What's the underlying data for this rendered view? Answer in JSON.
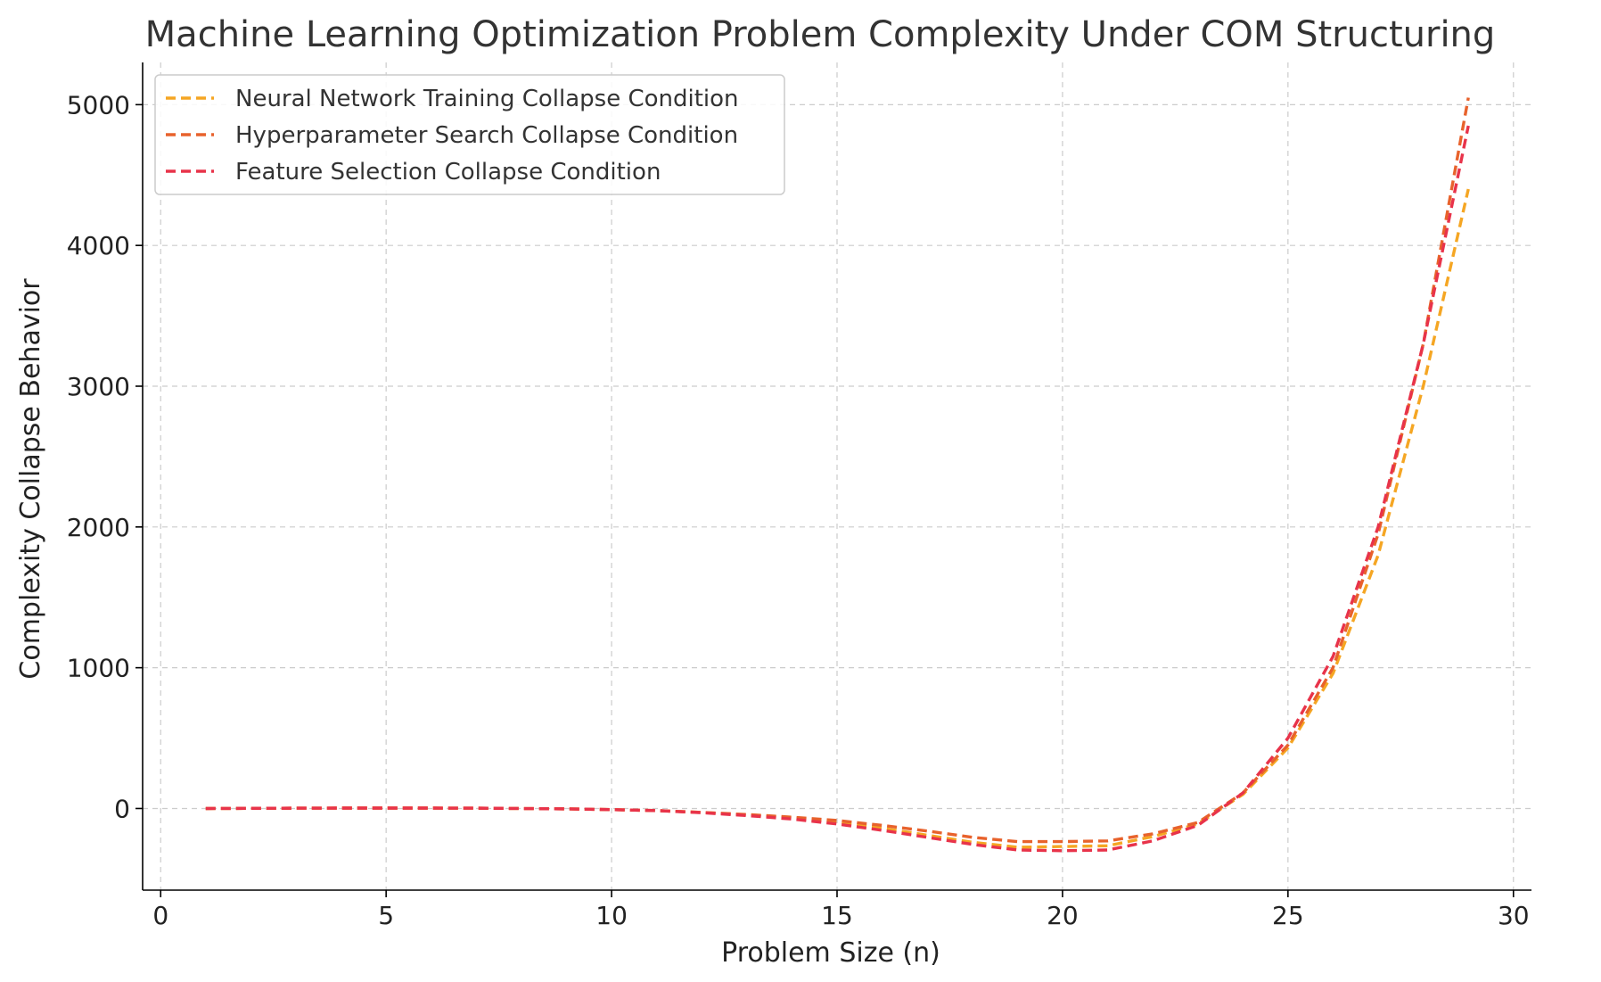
{
  "chart_data": {
    "type": "line",
    "title": "Machine Learning Optimization Problem Complexity Under COM Structuring",
    "xlabel": "Problem Size (n)",
    "ylabel": "Complexity Collapse Behavior",
    "xlim": [
      -0.4,
      30.4
    ],
    "ylim": [
      -580,
      5300
    ],
    "xticks": [
      0,
      5,
      10,
      15,
      20,
      25,
      30
    ],
    "yticks": [
      0,
      1000,
      2000,
      3000,
      4000,
      5000
    ],
    "grid": true,
    "legend_position": "top-left",
    "x": [
      1,
      2,
      3,
      4,
      5,
      6,
      7,
      8,
      9,
      10,
      11,
      12,
      13,
      14,
      15,
      16,
      17,
      18,
      19,
      20,
      21,
      22,
      23,
      24,
      25,
      26,
      27,
      28,
      29
    ],
    "series": [
      {
        "name": "Neural Network Training Collapse Condition",
        "color": "#f5a623",
        "values": [
          0,
          1,
          2,
          3,
          3,
          3,
          2,
          0,
          -3,
          -8,
          -15,
          -28,
          -45,
          -68,
          -98,
          -140,
          -190,
          -240,
          -275,
          -270,
          -265,
          -200,
          -110,
          100,
          430,
          960,
          1800,
          3000,
          4400
        ]
      },
      {
        "name": "Hyperparameter Search Collapse Condition",
        "color": "#e8622c",
        "values": [
          0,
          1,
          2,
          3,
          3,
          3,
          2,
          0,
          -3,
          -8,
          -15,
          -28,
          -43,
          -62,
          -85,
          -120,
          -160,
          -205,
          -235,
          -235,
          -230,
          -180,
          -100,
          110,
          450,
          1000,
          1950,
          3300,
          5050
        ]
      },
      {
        "name": "Feature Selection Collapse Condition",
        "color": "#e8334a",
        "values": [
          0,
          1,
          2,
          3,
          3,
          3,
          2,
          0,
          -3,
          -8,
          -15,
          -30,
          -50,
          -75,
          -110,
          -155,
          -205,
          -255,
          -295,
          -300,
          -295,
          -230,
          -120,
          110,
          500,
          1080,
          2000,
          3300,
          4850
        ]
      }
    ]
  }
}
